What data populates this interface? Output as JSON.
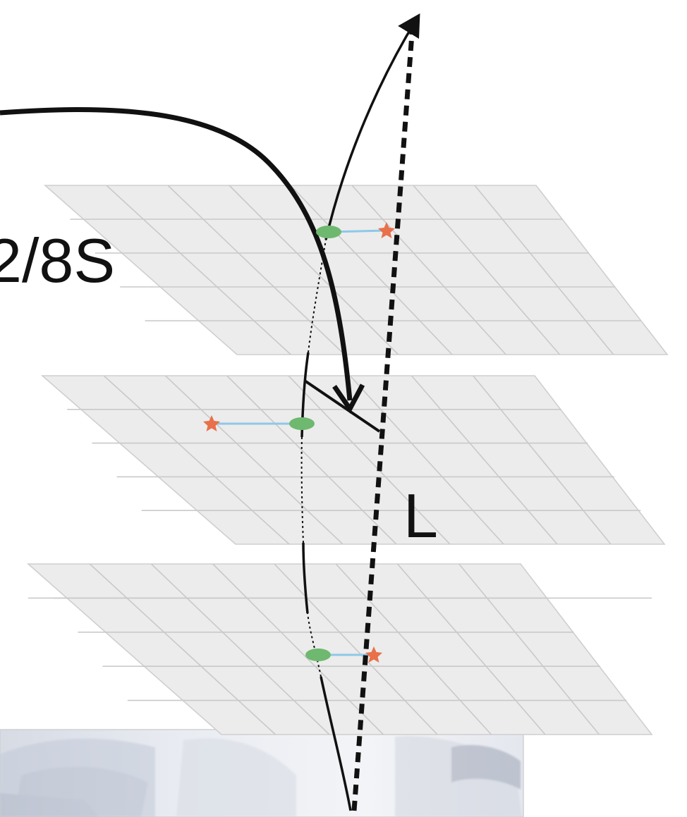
{
  "labels": {
    "angle_text": "2/8S",
    "distance_text": "L"
  },
  "colors": {
    "plane_fill": "#ececec",
    "plane_grid": "#c9c9c9",
    "hit_dot": "#6fb86f",
    "truth_star": "#e8704a",
    "residual_link": "#8ec8e8",
    "track": "#111111"
  }
}
